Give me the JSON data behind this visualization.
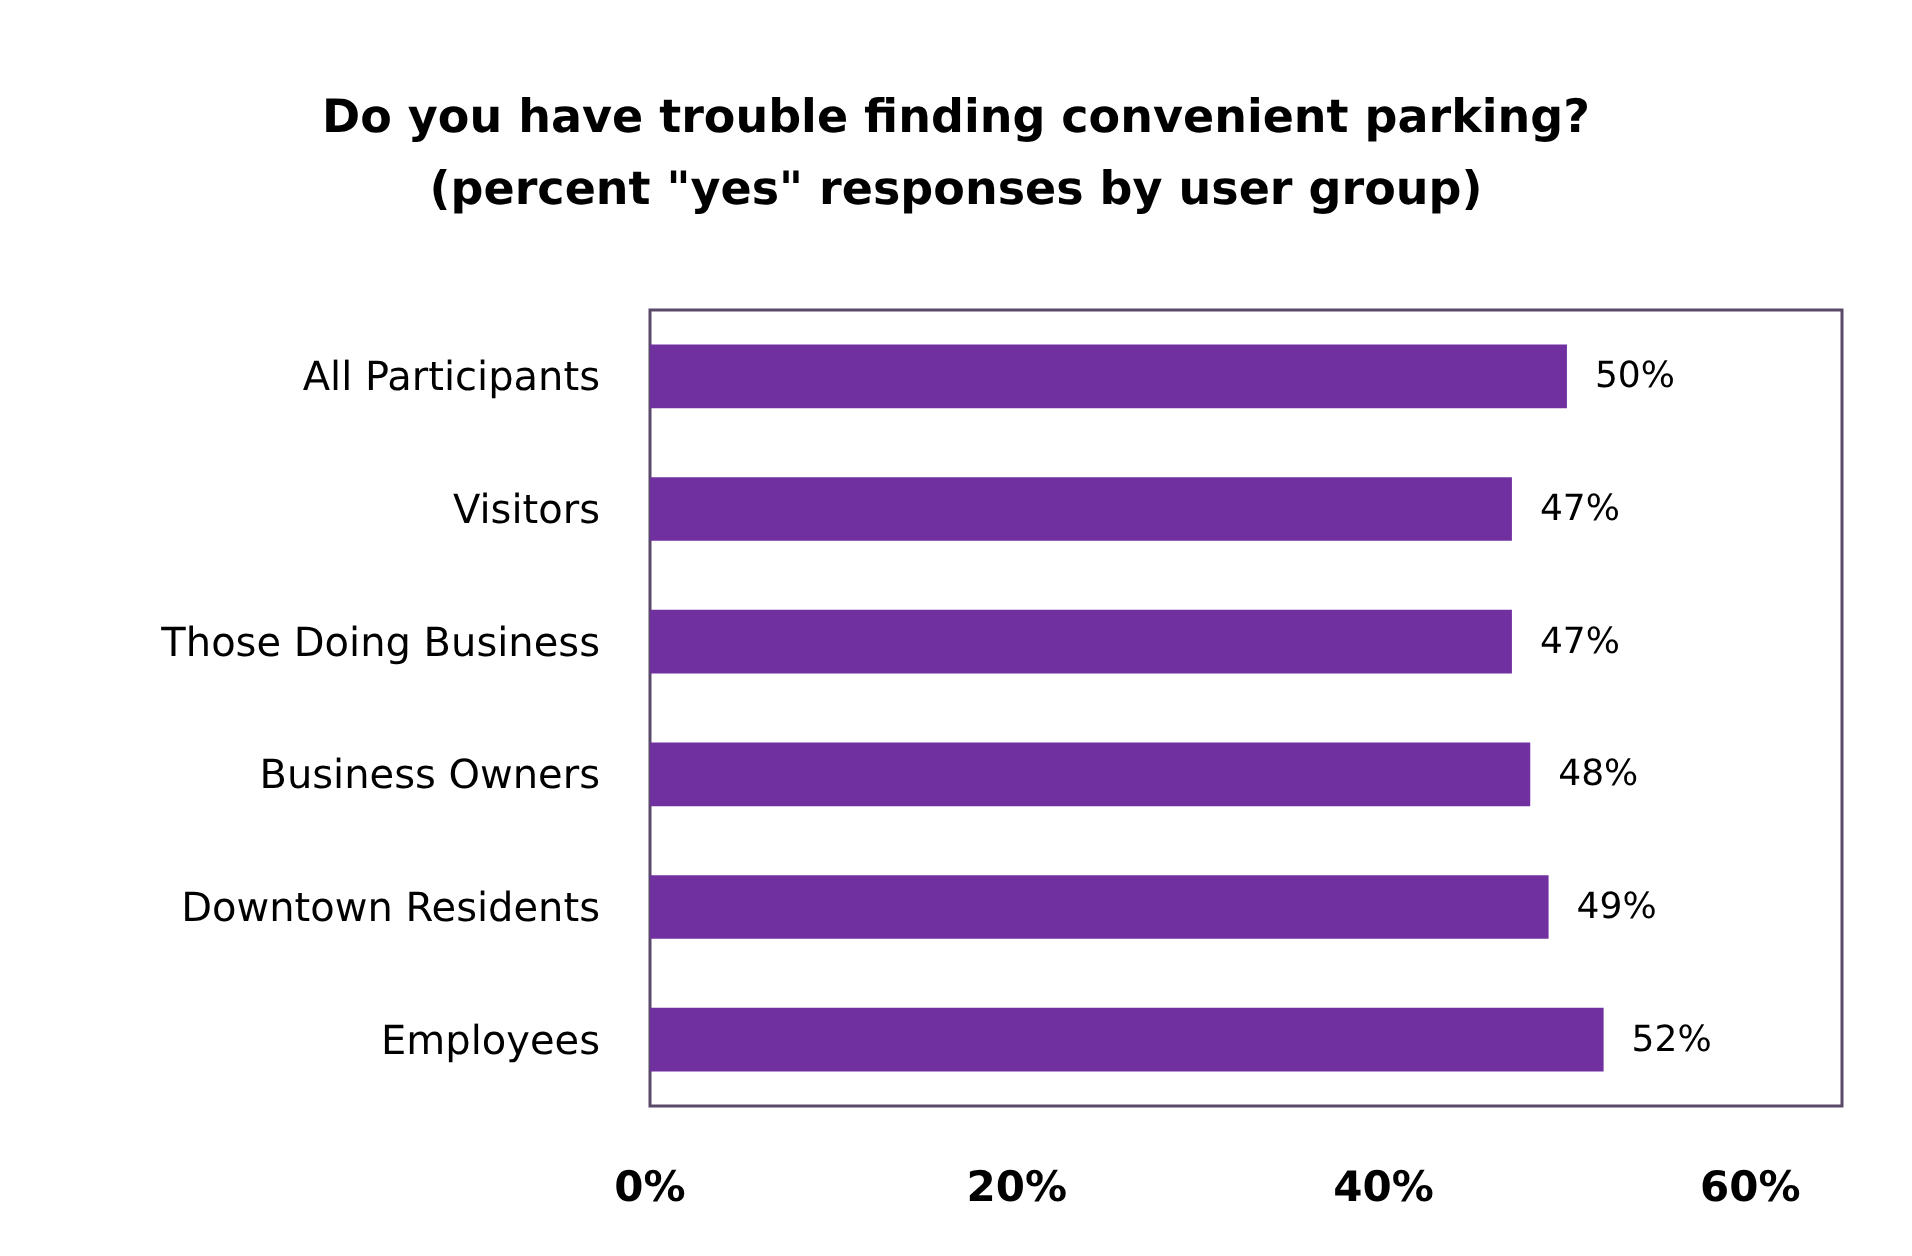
{
  "chart_data": {
    "type": "bar",
    "orientation": "horizontal",
    "title": "Do you have trouble finding convenient parking?\n(percent \"yes\" responses by user group)",
    "categories": [
      "All Participants",
      "Visitors",
      "Those Doing Business",
      "Business Owners",
      "Downtown Residents",
      "Employees"
    ],
    "values": [
      50,
      47,
      47,
      48,
      49,
      52
    ],
    "value_labels": [
      "50%",
      "47%",
      "47%",
      "48%",
      "49%",
      "52%"
    ],
    "color": "#7030a0",
    "xlim": [
      0,
      65
    ],
    "xticks": [
      {
        "value": 0,
        "label": "0%"
      },
      {
        "value": 20,
        "label": "20%"
      },
      {
        "value": 40,
        "label": "40%"
      },
      {
        "value": 60,
        "label": "60%"
      }
    ],
    "grid": false
  }
}
